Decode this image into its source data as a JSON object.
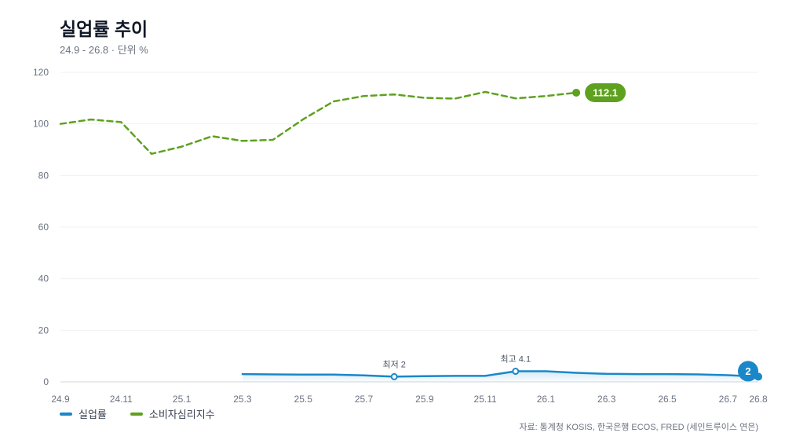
{
  "header": {
    "title": "실업률 추이",
    "subtitle": "24.9 - 26.8 · 단위 %"
  },
  "legend": {
    "items": [
      {
        "label": "실업률",
        "color": "#1a87c9"
      },
      {
        "label": "소비자심리지수",
        "color": "#5ea11f"
      }
    ]
  },
  "source": "자료: 통계청 KOSIS, 한국은행 ECOS, FRED (세인트루이스 연은)",
  "chart_data": {
    "type": "line",
    "ylim": [
      0,
      120
    ],
    "yticks": [
      0,
      20,
      40,
      60,
      80,
      100,
      120
    ],
    "x": [
      "24.9",
      "24.10",
      "24.11",
      "24.12",
      "25.1",
      "25.2",
      "25.3",
      "25.4",
      "25.5",
      "25.6",
      "25.7",
      "25.8",
      "25.9",
      "25.10",
      "25.11",
      "25.12",
      "26.1",
      "26.2",
      "26.3",
      "26.4",
      "26.5",
      "26.6",
      "26.7",
      "26.8"
    ],
    "xtick_labels": [
      "24.9",
      "24.11",
      "25.1",
      "25.3",
      "25.5",
      "25.7",
      "25.9",
      "25.11",
      "26.1",
      "26.3",
      "26.5",
      "26.7",
      "26.8"
    ],
    "grid": true,
    "legend_position": "bottom-left",
    "series": [
      {
        "name": "실업률",
        "color": "#1a87c9",
        "style": "solid",
        "values": [
          null,
          null,
          null,
          null,
          null,
          null,
          3.0,
          2.9,
          2.8,
          2.8,
          2.5,
          2.0,
          2.2,
          2.3,
          2.3,
          4.1,
          4.1,
          3.5,
          3.1,
          3.0,
          3.0,
          2.9,
          2.6,
          2.0
        ],
        "annotations": [
          {
            "label": "최저 2",
            "x": "25.8",
            "value": 2.0
          },
          {
            "label": "최고 4.1",
            "x": "25.12",
            "value": 4.1
          }
        ],
        "end_label": "2"
      },
      {
        "name": "소비자심리지수",
        "color": "#5ea11f",
        "style": "dashed",
        "values": [
          100.0,
          101.7,
          100.7,
          88.4,
          91.2,
          95.2,
          93.4,
          93.8,
          101.8,
          108.7,
          110.8,
          111.4,
          110.1,
          109.8,
          112.4,
          109.9,
          110.8,
          112.1,
          null,
          null,
          null,
          null,
          null,
          null
        ],
        "end_label": "112.1"
      }
    ]
  }
}
